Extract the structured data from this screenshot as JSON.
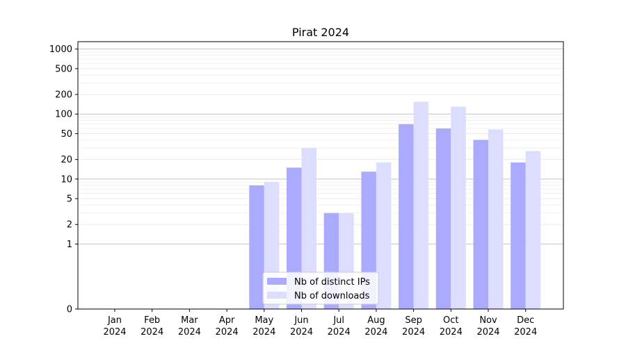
{
  "chart_data": {
    "type": "bar",
    "title": "Pirat 2024",
    "xlabel": "",
    "ylabel": "",
    "y_scale": "symlog",
    "ylim": [
      0,
      1300
    ],
    "grid": true,
    "legend_position": "lower-center",
    "categories": [
      [
        "Jan",
        "2024"
      ],
      [
        "Feb",
        "2024"
      ],
      [
        "Mar",
        "2024"
      ],
      [
        "Apr",
        "2024"
      ],
      [
        "May",
        "2024"
      ],
      [
        "Jun",
        "2024"
      ],
      [
        "Jul",
        "2024"
      ],
      [
        "Aug",
        "2024"
      ],
      [
        "Sep",
        "2024"
      ],
      [
        "Oct",
        "2024"
      ],
      [
        "Nov",
        "2024"
      ],
      [
        "Dec",
        "2024"
      ]
    ],
    "y_ticks": [
      0,
      1,
      2,
      5,
      10,
      20,
      50,
      100,
      200,
      500,
      1000
    ],
    "series": [
      {
        "name": "Nb of distinct IPs",
        "color": "#aaaaff",
        "values": [
          0,
          0,
          0,
          0,
          8,
          15,
          3,
          13,
          70,
          60,
          40,
          18
        ]
      },
      {
        "name": "Nb of downloads",
        "color": "#ddddff",
        "values": [
          0,
          0,
          0,
          0,
          9,
          30,
          3,
          18,
          155,
          130,
          58,
          27
        ]
      }
    ]
  }
}
